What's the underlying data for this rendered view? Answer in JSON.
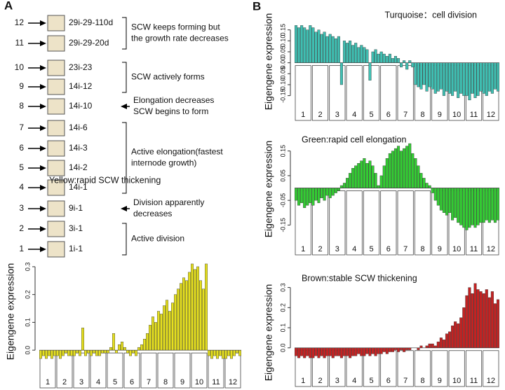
{
  "panel_a": {
    "label": "A",
    "stages": [
      {
        "number": "12",
        "code": "29i-29-110d"
      },
      {
        "number": "11",
        "code": "29i-29-20d"
      },
      {
        "number": "10",
        "code": "23i-23"
      },
      {
        "number": "9",
        "code": "14i-12"
      },
      {
        "number": "8",
        "code": "14i-10"
      },
      {
        "number": "7",
        "code": "14i-6"
      },
      {
        "number": "6",
        "code": "14i-3"
      },
      {
        "number": "5",
        "code": "14i-2"
      },
      {
        "number": "4",
        "code": "14i-1"
      },
      {
        "number": "3",
        "code": "9i-1"
      },
      {
        "number": "2",
        "code": "3i-1"
      },
      {
        "number": "1",
        "code": "1i-1"
      }
    ],
    "annotations": [
      {
        "lines": [
          "SCW keeps forming but",
          "the growth rate decreases"
        ]
      },
      {
        "lines": [
          "SCW actively forms"
        ]
      },
      {
        "lines": [
          "Elongation decreases",
          "SCW begins to form"
        ]
      },
      {
        "lines": [
          "Active elongation(fastest",
          "internode growth)"
        ]
      },
      {
        "lines": [
          "Division apparently",
          "decreases"
        ]
      },
      {
        "lines": [
          "Active division"
        ]
      }
    ]
  },
  "panel_b": {
    "label": "B"
  },
  "chart_data": [
    {
      "type": "bar",
      "title": "Yellow:rapid SCW thickening",
      "y_label": "Eigengene expression",
      "color": "#e6e01e",
      "groups": [
        "1",
        "2",
        "3",
        "4",
        "5",
        "6",
        "7",
        "8",
        "9",
        "10",
        "11",
        "12"
      ],
      "values": [
        -0.03,
        -0.02,
        -0.03,
        -0.02,
        -0.03,
        -0.02,
        -0.02,
        -0.03,
        -0.02,
        -0.01,
        -0.02,
        -0.02,
        -0.02,
        -0.01,
        -0.02,
        0.08,
        -0.02,
        -0.01,
        -0.02,
        -0.01,
        -0.02,
        -0.02,
        -0.01,
        -0.01,
        -0.01,
        0.01,
        0.06,
        -0.01,
        0.02,
        0.03,
        0.01,
        -0.01,
        -0.02,
        -0.01,
        -0.02,
        0.01,
        0.02,
        0.04,
        0.06,
        0.09,
        0.12,
        0.1,
        0.14,
        0.13,
        0.16,
        0.18,
        0.14,
        0.17,
        0.2,
        0.22,
        0.24,
        0.26,
        0.25,
        0.28,
        0.31,
        0.29,
        0.3,
        0.25,
        0.22,
        0.31,
        -0.02,
        -0.03,
        -0.02,
        -0.03,
        -0.02,
        -0.03,
        -0.03,
        -0.02,
        -0.03,
        -0.02,
        -0.01,
        -0.02
      ],
      "ylim": [
        -0.05,
        0.33
      ],
      "yticks": [
        {
          "value": 0,
          "label": "0.0"
        },
        0.1,
        0.2,
        0.3
      ]
    },
    {
      "type": "bar",
      "title": "Turquoise：cell division",
      "y_label": "Eigengene expression",
      "color": "#3fbfb2",
      "groups": [
        "1",
        "2",
        "3",
        "4",
        "5",
        "6",
        "7",
        "8",
        "9",
        "10",
        "11",
        "12"
      ],
      "values": [
        0.17,
        0.16,
        0.17,
        0.16,
        0.15,
        0.17,
        0.16,
        0.14,
        0.15,
        0.13,
        0.14,
        0.12,
        0.13,
        0.12,
        0.11,
        0.12,
        -0.1,
        0.1,
        0.09,
        0.1,
        0.08,
        0.09,
        0.07,
        0.08,
        0.07,
        0.06,
        -0.08,
        0.05,
        0.06,
        0.04,
        0.05,
        0.04,
        0.03,
        0.04,
        0.02,
        0.03,
        0.02,
        -0.02,
        0.01,
        -0.03,
        0.01,
        -0.02,
        -0.1,
        -0.11,
        -0.12,
        -0.1,
        -0.13,
        -0.11,
        -0.12,
        -0.14,
        -0.13,
        -0.12,
        -0.15,
        -0.13,
        -0.14,
        -0.15,
        -0.13,
        -0.16,
        -0.14,
        -0.15,
        -0.15,
        -0.17,
        -0.14,
        -0.16,
        -0.15,
        -0.13,
        -0.14,
        -0.15,
        -0.13,
        -0.14,
        -0.12,
        -0.13
      ],
      "ylim": [
        -0.18,
        0.2
      ],
      "yticks": [
        -0.15,
        {
          "value": -0.1,
          "label": "-0.10"
        },
        -0.05,
        {
          "value": 0,
          "label": "0.00"
        },
        0.05,
        {
          "value": 0.1,
          "label": "0.10"
        },
        0.15
      ]
    },
    {
      "type": "bar",
      "title": "Green:rapid cell elongation",
      "y_label": "Eigengene expression",
      "color": "#33cc33",
      "groups": [
        "1",
        "2",
        "3",
        "4",
        "5",
        "6",
        "7",
        "8",
        "9",
        "10",
        "11",
        "12"
      ],
      "values": [
        -0.05,
        -0.07,
        -0.06,
        -0.08,
        -0.07,
        -0.06,
        -0.07,
        -0.05,
        -0.06,
        -0.04,
        -0.05,
        -0.03,
        -0.04,
        -0.03,
        -0.02,
        -0.01,
        0.01,
        0.02,
        0.04,
        0.06,
        0.08,
        0.09,
        0.1,
        0.11,
        0.12,
        0.1,
        0.11,
        0.09,
        0.06,
        0.01,
        0.05,
        0.09,
        0.12,
        0.14,
        0.15,
        0.16,
        0.17,
        0.15,
        0.16,
        0.17,
        0.18,
        0.14,
        0.12,
        0.09,
        0.06,
        0.04,
        0.02,
        0.01,
        -0.02,
        -0.05,
        -0.07,
        -0.09,
        -0.1,
        -0.11,
        -0.1,
        -0.13,
        -0.12,
        -0.14,
        -0.15,
        -0.16,
        -0.17,
        -0.16,
        -0.15,
        -0.16,
        -0.15,
        -0.14,
        -0.14,
        -0.13,
        -0.14,
        -0.13,
        -0.14,
        -0.13
      ],
      "ylim": [
        -0.18,
        0.2
      ],
      "yticks": [
        -0.15,
        -0.05,
        0.05,
        0.15
      ]
    },
    {
      "type": "bar",
      "title": "Brown:stable SCW thickening",
      "y_label": "Eigengene expression",
      "color": "#c42222",
      "groups": [
        "1",
        "2",
        "3",
        "4",
        "5",
        "6",
        "7",
        "8",
        "9",
        "10",
        "11",
        "12"
      ],
      "values": [
        -0.04,
        -0.05,
        -0.04,
        -0.05,
        -0.04,
        -0.05,
        -0.05,
        -0.04,
        -0.05,
        -0.04,
        -0.05,
        -0.04,
        -0.04,
        -0.05,
        -0.04,
        -0.04,
        -0.05,
        -0.04,
        -0.04,
        -0.05,
        -0.04,
        -0.04,
        -0.03,
        -0.04,
        -0.04,
        -0.03,
        -0.04,
        -0.03,
        -0.04,
        -0.03,
        -0.03,
        -0.02,
        -0.03,
        -0.02,
        -0.02,
        -0.01,
        -0.02,
        -0.01,
        -0.02,
        -0.01,
        -0.01,
        0.0,
        0.0,
        -0.01,
        0.01,
        0.0,
        0.01,
        0.02,
        0.02,
        0.01,
        0.03,
        0.05,
        0.04,
        0.07,
        0.08,
        0.11,
        0.13,
        0.12,
        0.15,
        0.2,
        0.26,
        0.3,
        0.27,
        0.32,
        0.29,
        0.28,
        0.27,
        0.29,
        0.25,
        0.28,
        0.22,
        0.24
      ],
      "ylim": [
        -0.06,
        0.33
      ],
      "yticks": [
        {
          "value": 0,
          "label": "0.0"
        },
        0.1,
        0.2,
        0.3
      ]
    }
  ]
}
